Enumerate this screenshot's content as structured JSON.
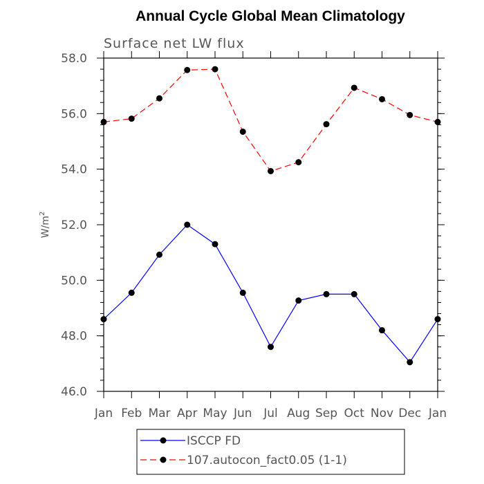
{
  "chart_data": {
    "type": "line",
    "title": "Annual Cycle Global Mean Climatology",
    "subtitle": "Surface net LW flux",
    "ylabel": "W/m",
    "ylabel_sup": "2",
    "xlabel": "",
    "categories": [
      "Jan",
      "Feb",
      "Mar",
      "Apr",
      "May",
      "Jun",
      "Jul",
      "Aug",
      "Sep",
      "Oct",
      "Nov",
      "Dec",
      "Jan"
    ],
    "ylim": [
      46.0,
      58.0
    ],
    "yticks": [
      "46.0",
      "48.0",
      "50.0",
      "52.0",
      "54.0",
      "56.0",
      "58.0"
    ],
    "series": [
      {
        "name": "ISCCP FD",
        "color": "#0000ff",
        "dash": "solid",
        "values": [
          48.6,
          49.55,
          50.92,
          52.0,
          51.3,
          49.55,
          47.6,
          49.27,
          49.5,
          49.5,
          48.2,
          47.05,
          48.6
        ]
      },
      {
        "name": "107.autocon_fact0.05 (1-1)",
        "color": "#ff0000",
        "dash": "dashed",
        "values": [
          55.7,
          55.82,
          56.55,
          57.57,
          57.6,
          55.35,
          53.93,
          54.25,
          55.62,
          56.93,
          56.52,
          55.95,
          55.7
        ]
      }
    ],
    "legend": "bottom-center",
    "grid": false
  }
}
